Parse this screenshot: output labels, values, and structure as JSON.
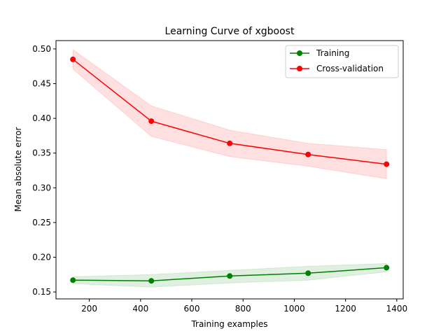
{
  "chart_data": {
    "type": "line",
    "title": "Learning Curve of xgboost",
    "xlabel": "Training examples",
    "ylabel": "Mean absolute error",
    "xlim": [
      70,
      1425
    ],
    "ylim": [
      0.14,
      0.512
    ],
    "xticks": [
      200,
      400,
      600,
      800,
      1000,
      1200,
      1400
    ],
    "xtick_labels": [
      "200",
      "400",
      "600",
      "800",
      "1000",
      "1200",
      "1400"
    ],
    "yticks": [
      0.15,
      0.2,
      0.25,
      0.3,
      0.35,
      0.4,
      0.45,
      0.5
    ],
    "ytick_labels": [
      "0.15",
      "0.20",
      "0.25",
      "0.30",
      "0.35",
      "0.40",
      "0.45",
      "0.50"
    ],
    "grid": false,
    "legend_position": "top-right",
    "x": [
      136,
      442,
      748,
      1054,
      1360
    ],
    "series": [
      {
        "name": "Training",
        "color": "#008000",
        "values": [
          0.167,
          0.166,
          0.173,
          0.177,
          0.185
        ],
        "lower": [
          0.162,
          0.157,
          0.163,
          0.167,
          0.179
        ],
        "upper": [
          0.172,
          0.175,
          0.181,
          0.187,
          0.191
        ]
      },
      {
        "name": "Cross-validation",
        "color": "#ff0000",
        "values": [
          0.485,
          0.396,
          0.364,
          0.348,
          0.334
        ],
        "lower": [
          0.471,
          0.374,
          0.345,
          0.331,
          0.313
        ],
        "upper": [
          0.499,
          0.418,
          0.383,
          0.364,
          0.355
        ]
      }
    ]
  }
}
